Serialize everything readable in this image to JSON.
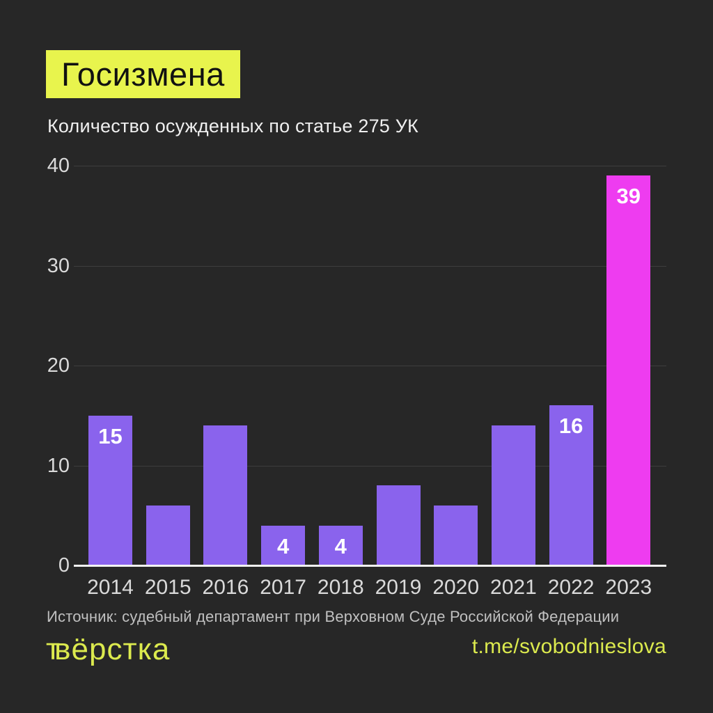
{
  "page": {
    "background": "#272727"
  },
  "header": {
    "title": "Госизмена",
    "title_highlight_color": "#e8f44d",
    "subtitle": "Количество осужденных по статье 275 УК"
  },
  "chart_data": {
    "type": "bar",
    "title": "Госизмена",
    "subtitle": "Количество осужденных по статье 275 УК",
    "categories": [
      "2014",
      "2015",
      "2016",
      "2017",
      "2018",
      "2019",
      "2020",
      "2021",
      "2022",
      "2023"
    ],
    "values": [
      15,
      6,
      14,
      4,
      4,
      8,
      6,
      14,
      16,
      39
    ],
    "value_labels": [
      "15",
      null,
      null,
      "4",
      "4",
      null,
      null,
      null,
      "16",
      "39"
    ],
    "highlight_index": 9,
    "bar_color": "#8a63ed",
    "highlight_color": "#ee3cf0",
    "xlabel": "",
    "ylabel": "",
    "ylim": [
      0,
      40
    ],
    "yticks": [
      0,
      10,
      20,
      30,
      40
    ],
    "grid": true,
    "legend": null
  },
  "footer": {
    "source": "Источник: судебный департамент при Верховном Суде Российской Федерации",
    "logo_prefix": "т",
    "logo_rest": "вёрстка",
    "logo_color": "#dcea4e",
    "link": "t.me/svobodnieslova",
    "link_color": "#dcea4e"
  }
}
